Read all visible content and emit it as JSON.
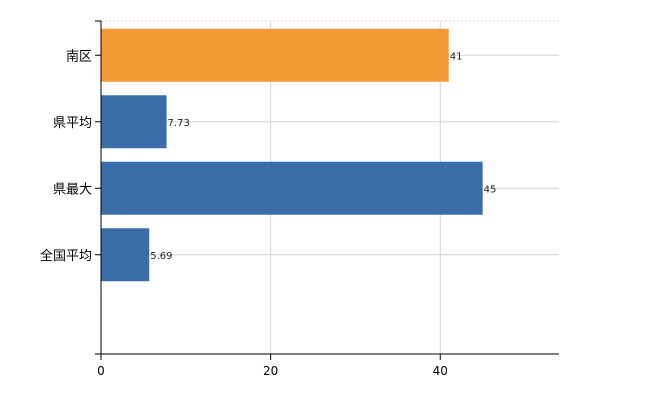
{
  "chart_data": {
    "type": "bar",
    "orientation": "horizontal",
    "categories": [
      "南区",
      "県平均",
      "県最大",
      "全国平均"
    ],
    "values": [
      41,
      7.73,
      45,
      5.69
    ],
    "value_labels": [
      "41",
      "7.73",
      "45",
      "5.69"
    ],
    "colors": [
      "#f39a35",
      "#3b6ea8",
      "#3b6ea8",
      "#3b6ea8"
    ],
    "xlim": [
      0,
      54
    ],
    "xticks": [
      0,
      20,
      40
    ],
    "grid": true,
    "title": "",
    "xlabel": "",
    "ylabel": ""
  }
}
